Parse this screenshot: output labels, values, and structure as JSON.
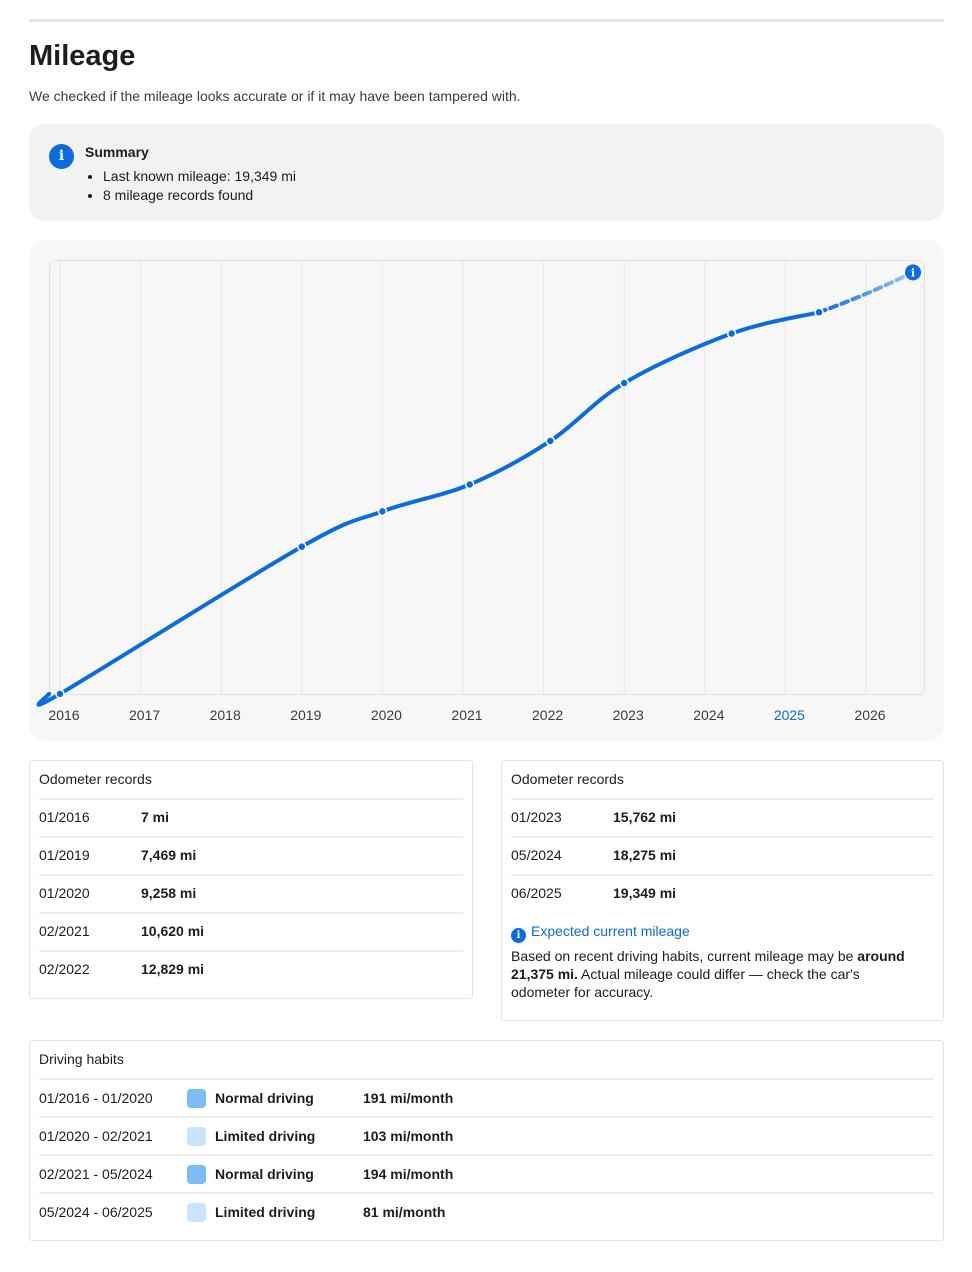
{
  "page": {
    "title": "Mileage",
    "subtitle": "We checked if the mileage looks accurate or if it may have been tampered with."
  },
  "summary": {
    "icon": "info-icon",
    "title": "Summary",
    "items": [
      "Last known mileage: 19,349 mi",
      "8 mileage records found"
    ]
  },
  "chart_data": {
    "type": "line",
    "x_ticks": [
      "2016",
      "2017",
      "2018",
      "2019",
      "2020",
      "2021",
      "2022",
      "2023",
      "2024",
      "2025",
      "2026"
    ],
    "highlighted_tick": "2025",
    "series": [
      {
        "values": [
          {
            "x": "01/2016",
            "y": 7
          },
          {
            "x": "01/2019",
            "y": 7469
          },
          {
            "x": "01/2020",
            "y": 9258
          },
          {
            "x": "02/2021",
            "y": 10620
          },
          {
            "x": "02/2022",
            "y": 12829
          },
          {
            "x": "01/2023",
            "y": 15762
          },
          {
            "x": "05/2024",
            "y": 18275
          },
          {
            "x": "06/2025",
            "y": 19349
          }
        ]
      },
      {
        "style": "dashed",
        "values": [
          {
            "x": "06/2025",
            "y": 19349
          },
          {
            "x": "08/2026",
            "y": 21375
          }
        ]
      }
    ],
    "end_marker_icon": "info-icon",
    "grid": "vertical",
    "colors": {
      "line": "#0a6cde",
      "projection": "#9cc8f0",
      "background": "#f7f7f7",
      "highlight_tick": "#0a6cde"
    }
  },
  "records_left": {
    "title": "Odometer records",
    "rows": [
      {
        "date": "01/2016",
        "value": "7 mi"
      },
      {
        "date": "01/2019",
        "value": "7,469 mi"
      },
      {
        "date": "01/2020",
        "value": "9,258 mi"
      },
      {
        "date": "02/2021",
        "value": "10,620 mi"
      },
      {
        "date": "02/2022",
        "value": "12,829 mi"
      }
    ]
  },
  "records_right": {
    "title": "Odometer records",
    "rows": [
      {
        "date": "01/2023",
        "value": "15,762 mi"
      },
      {
        "date": "05/2024",
        "value": "18,275 mi"
      },
      {
        "date": "06/2025",
        "value": "19,349 mi"
      }
    ],
    "expected": {
      "icon": "info-icon",
      "heading": "Expected current mileage",
      "text_before": "Based on recent driving habits, current mileage may be ",
      "text_bold": "around 21,375 mi.",
      "text_after": " Actual mileage could differ — check the car's odometer for accuracy."
    }
  },
  "habits": {
    "title": "Driving habits",
    "colors": {
      "Normal driving": "#7dbdf5",
      "Limited driving": "#c9e5fb"
    },
    "rows": [
      {
        "period": "01/2016 - 01/2020",
        "type": "Normal driving",
        "rate": "191 mi/month"
      },
      {
        "period": "01/2020 - 02/2021",
        "type": "Limited driving",
        "rate": "103 mi/month"
      },
      {
        "period": "02/2021 - 05/2024",
        "type": "Normal driving",
        "rate": "194 mi/month"
      },
      {
        "period": "05/2024 - 06/2025",
        "type": "Limited driving",
        "rate": "81 mi/month"
      }
    ]
  }
}
